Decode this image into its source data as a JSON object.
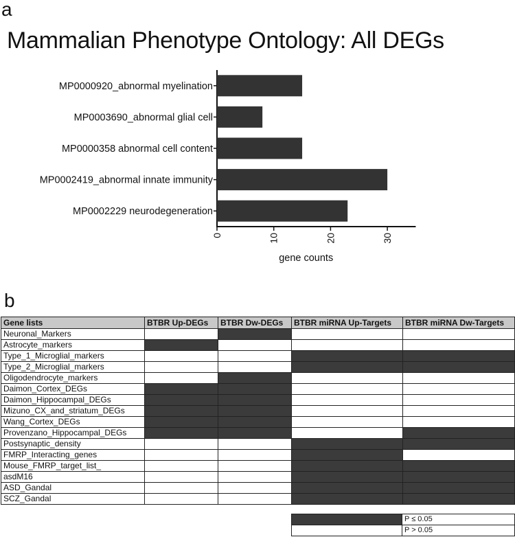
{
  "panel_a_label": "a",
  "panel_b_label": "b",
  "chart_data": {
    "type": "bar",
    "orientation": "horizontal",
    "title": "Mammalian Phenotype Ontology: All DEGs",
    "categories": [
      "MP0000920_abnormal myelination",
      "MP0003690_abnormal glial cell",
      "MP0000358 abnormal cell content",
      "MP0002419_abnormal innate immunity",
      "MP0002229 neurodegeneration"
    ],
    "values": [
      15,
      8,
      15,
      30,
      23
    ],
    "xlabel": "gene counts",
    "ylabel": "",
    "xlim": [
      0,
      35
    ],
    "xticks": [
      "0",
      "10",
      "20",
      "30"
    ],
    "bar_color": "#333333",
    "grid": false
  },
  "table": {
    "headers": [
      "Gene lists",
      "BTBR Up-DEGs",
      "BTBR Dw-DEGs",
      "BTBR miRNA Up-Targets",
      "BTBR miRNA Dw-Targets"
    ],
    "rows": [
      {
        "name": "Neuronal_Markers",
        "sig": [
          false,
          true,
          false,
          false
        ]
      },
      {
        "name": "Astrocyte_markers",
        "sig": [
          true,
          false,
          false,
          false
        ]
      },
      {
        "name": "Type_1_Microglial_markers",
        "sig": [
          false,
          false,
          true,
          true
        ]
      },
      {
        "name": "Type_2_Microglial_markers",
        "sig": [
          false,
          false,
          true,
          true
        ]
      },
      {
        "name": "Oligodendrocyte_markers",
        "sig": [
          false,
          true,
          false,
          false
        ]
      },
      {
        "name": "Daimon_Cortex_DEGs",
        "sig": [
          true,
          true,
          false,
          false
        ]
      },
      {
        "name": "Daimon_Hippocampal_DEGs",
        "sig": [
          true,
          true,
          false,
          false
        ]
      },
      {
        "name": "Mizuno_CX_and_striatum_DEGs",
        "sig": [
          true,
          true,
          false,
          false
        ]
      },
      {
        "name": "Wang_Cortex_DEGs",
        "sig": [
          true,
          true,
          false,
          false
        ]
      },
      {
        "name": "Provenzano_Hippocampal_DEGs",
        "sig": [
          true,
          true,
          false,
          true
        ]
      },
      {
        "name": "Postsynaptic_density",
        "sig": [
          false,
          false,
          true,
          true
        ]
      },
      {
        "name": "FMRP_Interacting_genes",
        "sig": [
          false,
          false,
          true,
          false
        ]
      },
      {
        "name": "Mouse_FMRP_target_list_",
        "sig": [
          false,
          false,
          true,
          true
        ]
      },
      {
        "name": "asdM16",
        "sig": [
          false,
          false,
          true,
          true
        ]
      },
      {
        "name": "ASD_Gandal",
        "sig": [
          false,
          false,
          true,
          true
        ]
      },
      {
        "name": "SCZ_Gandal",
        "sig": [
          false,
          false,
          true,
          true
        ]
      }
    ],
    "sig_color": "#3b3b3b",
    "header_color": "#c8c8c8"
  },
  "legend": {
    "sig_label": "P ≤ 0.05",
    "nsig_label": "P > 0.05"
  }
}
